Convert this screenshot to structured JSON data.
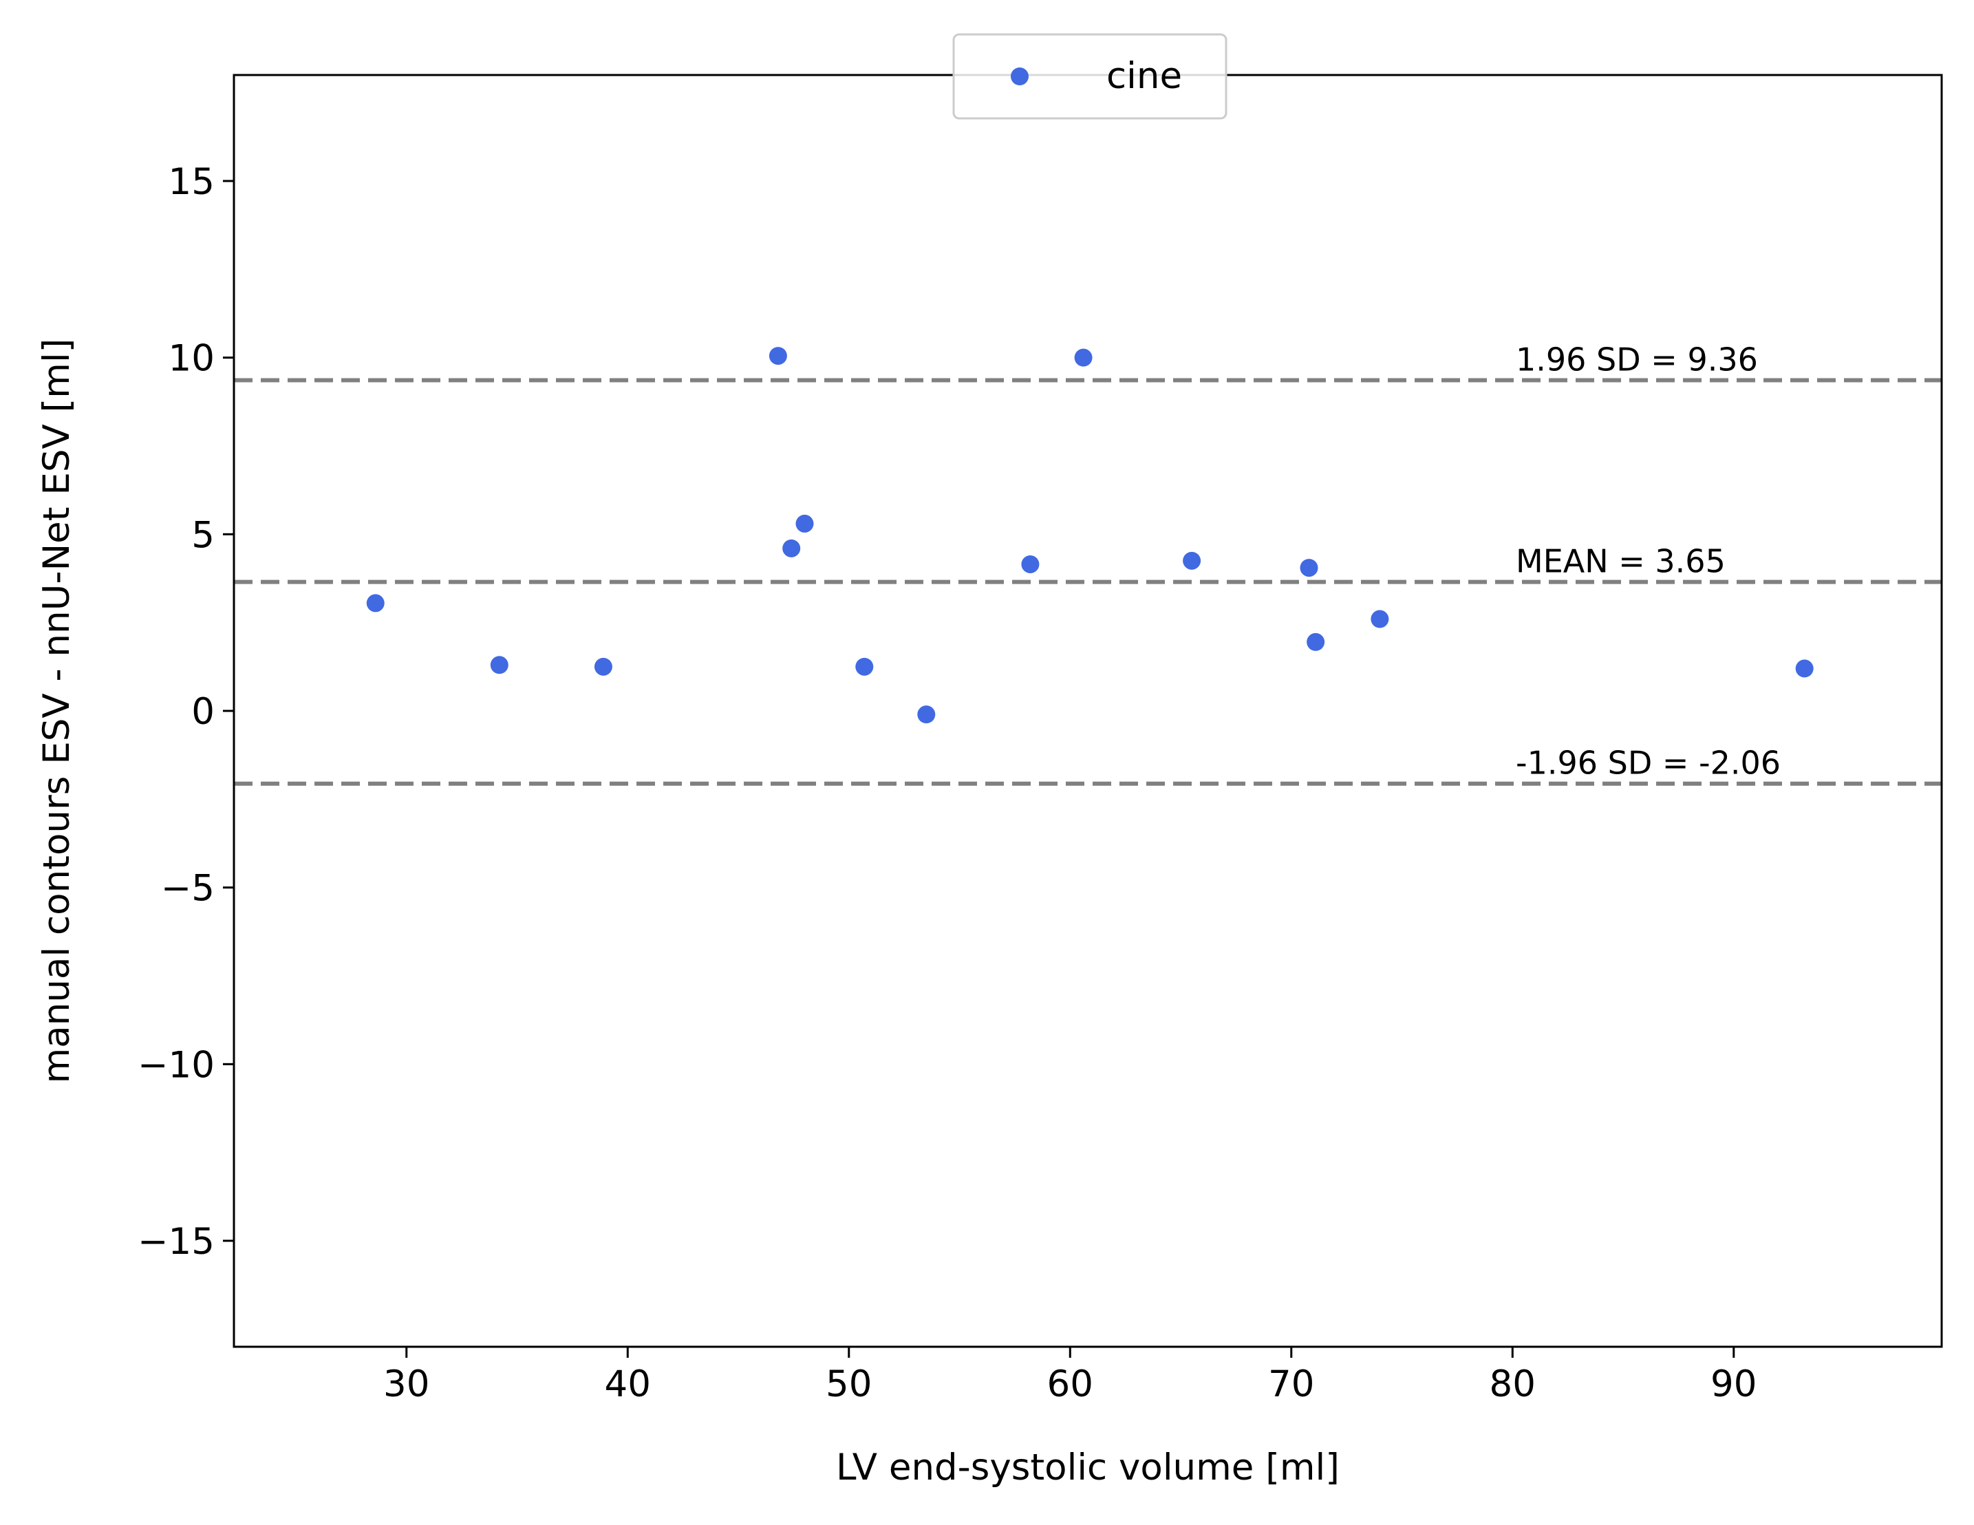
{
  "chart_data": {
    "type": "scatter",
    "xlabel": "LV end-systolic volume [ml]",
    "ylabel": "manual contours ESV - nnU-Net ESV [ml]",
    "xlim": [
      22.2,
      99.4
    ],
    "ylim": [
      -18,
      18
    ],
    "xticks": [
      30,
      40,
      50,
      60,
      70,
      80,
      90
    ],
    "yticks": [
      -15,
      -10,
      -5,
      0,
      5,
      10,
      15
    ],
    "xtick_labels": [
      "30",
      "40",
      "50",
      "60",
      "70",
      "80",
      "90"
    ],
    "ytick_labels": [
      "−15",
      "−10",
      "−5",
      "0",
      "5",
      "10",
      "15"
    ],
    "grid": false,
    "legend": {
      "position": "top-center",
      "entries": [
        "cine"
      ]
    },
    "series": [
      {
        "name": "cine",
        "color": "#4169e1",
        "points": [
          {
            "x": 28.6,
            "y": 3.05
          },
          {
            "x": 34.2,
            "y": 1.3
          },
          {
            "x": 38.9,
            "y": 1.25
          },
          {
            "x": 46.8,
            "y": 10.05
          },
          {
            "x": 47.4,
            "y": 4.6
          },
          {
            "x": 48.0,
            "y": 5.3
          },
          {
            "x": 50.7,
            "y": 1.25
          },
          {
            "x": 53.5,
            "y": -0.1
          },
          {
            "x": 58.2,
            "y": 4.15
          },
          {
            "x": 60.6,
            "y": 10.0
          },
          {
            "x": 65.5,
            "y": 4.25
          },
          {
            "x": 70.8,
            "y": 4.05
          },
          {
            "x": 71.1,
            "y": 1.95
          },
          {
            "x": 74.0,
            "y": 2.6
          },
          {
            "x": 93.2,
            "y": 1.2
          }
        ]
      }
    ],
    "reference_lines": [
      {
        "y": 9.36,
        "label": "1.96 SD = 9.36",
        "color": "#808080",
        "style": "dashed"
      },
      {
        "y": 3.65,
        "label": "MEAN = 3.65",
        "color": "#808080",
        "style": "dashed"
      },
      {
        "y": -2.06,
        "label": "-1.96 SD = -2.06",
        "color": "#808080",
        "style": "dashed"
      }
    ]
  }
}
